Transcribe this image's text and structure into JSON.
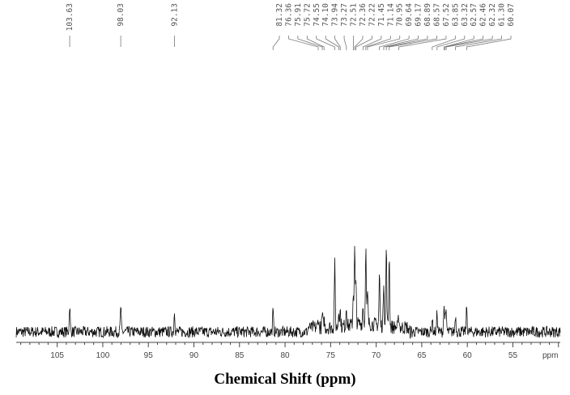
{
  "chart_data": {
    "type": "line",
    "title": "",
    "xlabel": "Chemical Shift (ppm)",
    "x_unit_label": "ppm",
    "xlim": [
      109.5,
      49.8
    ],
    "x_reversed": true,
    "x_ticks": [
      105,
      100,
      95,
      90,
      85,
      80,
      75,
      70,
      65,
      60,
      55
    ],
    "grid": false,
    "peak_labels": [
      "103.63",
      "98.03",
      "92.13",
      "81.32",
      "76.36",
      "75.91",
      "75.72",
      "74.55",
      "74.10",
      "73.94",
      "73.27",
      "72.51",
      "72.36",
      "72.22",
      "71.45",
      "71.14",
      "70.95",
      "69.64",
      "69.17",
      "68.89",
      "68.57",
      "67.52",
      "63.85",
      "63.32",
      "62.57",
      "62.46",
      "62.32",
      "61.30",
      "60.07"
    ],
    "peaks": [
      {
        "x": 103.63,
        "y": 0.34
      },
      {
        "x": 98.03,
        "y": 0.32
      },
      {
        "x": 92.13,
        "y": 0.27
      },
      {
        "x": 81.32,
        "y": 0.26
      },
      {
        "x": 76.36,
        "y": 0.12
      },
      {
        "x": 75.91,
        "y": 0.16
      },
      {
        "x": 75.72,
        "y": 0.1
      },
      {
        "x": 74.55,
        "y": 0.8
      },
      {
        "x": 74.1,
        "y": 0.22
      },
      {
        "x": 73.94,
        "y": 0.2
      },
      {
        "x": 73.27,
        "y": 0.26
      },
      {
        "x": 72.51,
        "y": 0.4
      },
      {
        "x": 72.36,
        "y": 0.93
      },
      {
        "x": 72.22,
        "y": 0.48
      },
      {
        "x": 71.45,
        "y": 0.22
      },
      {
        "x": 71.14,
        "y": 0.96
      },
      {
        "x": 70.95,
        "y": 0.38
      },
      {
        "x": 69.64,
        "y": 0.65
      },
      {
        "x": 69.17,
        "y": 0.6
      },
      {
        "x": 68.89,
        "y": 1.0
      },
      {
        "x": 68.57,
        "y": 0.9
      },
      {
        "x": 67.52,
        "y": 0.14
      },
      {
        "x": 63.85,
        "y": 0.18
      },
      {
        "x": 63.32,
        "y": 0.24
      },
      {
        "x": 62.57,
        "y": 0.28
      },
      {
        "x": 62.46,
        "y": 0.2
      },
      {
        "x": 62.32,
        "y": 0.24
      },
      {
        "x": 61.3,
        "y": 0.22
      },
      {
        "x": 60.07,
        "y": 0.32
      }
    ]
  }
}
